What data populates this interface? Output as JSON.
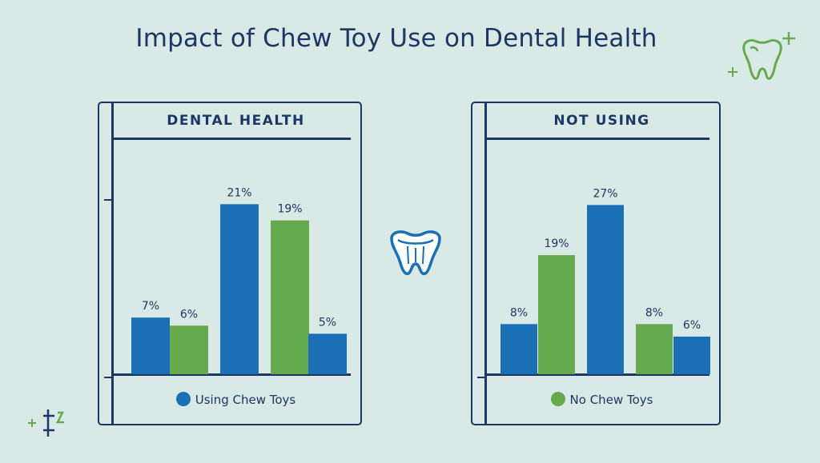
{
  "title": "Impact of Chew Toy Use on Dental Health",
  "colors": {
    "blue": "#1a6fb5",
    "green": "#66aa4f",
    "navy": "#1c3764",
    "background": "#d8e9e6"
  },
  "center_icon": "tooth-icon",
  "chart_data": [
    {
      "type": "bar",
      "title": "DENTAL HEALTH",
      "legend": "Using Chew Toys",
      "legend_color": "#1a6fb5",
      "labels": [
        "7%",
        "6%",
        "21%",
        "19%",
        "5%"
      ],
      "values": [
        7,
        6,
        21,
        19,
        5
      ],
      "bar_colors": [
        "#1a6fb5",
        "#66aa4f",
        "#1a6fb5",
        "#66aa4f",
        "#1a6fb5"
      ],
      "ylim": [
        0,
        24
      ]
    },
    {
      "type": "bar",
      "title": "NOT USING",
      "legend": "No Chew Toys",
      "legend_color": "#66aa4f",
      "labels": [
        "8%",
        "19%",
        "27%",
        "8%",
        "6%"
      ],
      "values": [
        8,
        19,
        27,
        8,
        6
      ],
      "bar_colors": [
        "#1a6fb5",
        "#66aa4f",
        "#1a6fb5",
        "#66aa4f",
        "#1a6fb5"
      ],
      "ylim": [
        0,
        31
      ]
    }
  ]
}
